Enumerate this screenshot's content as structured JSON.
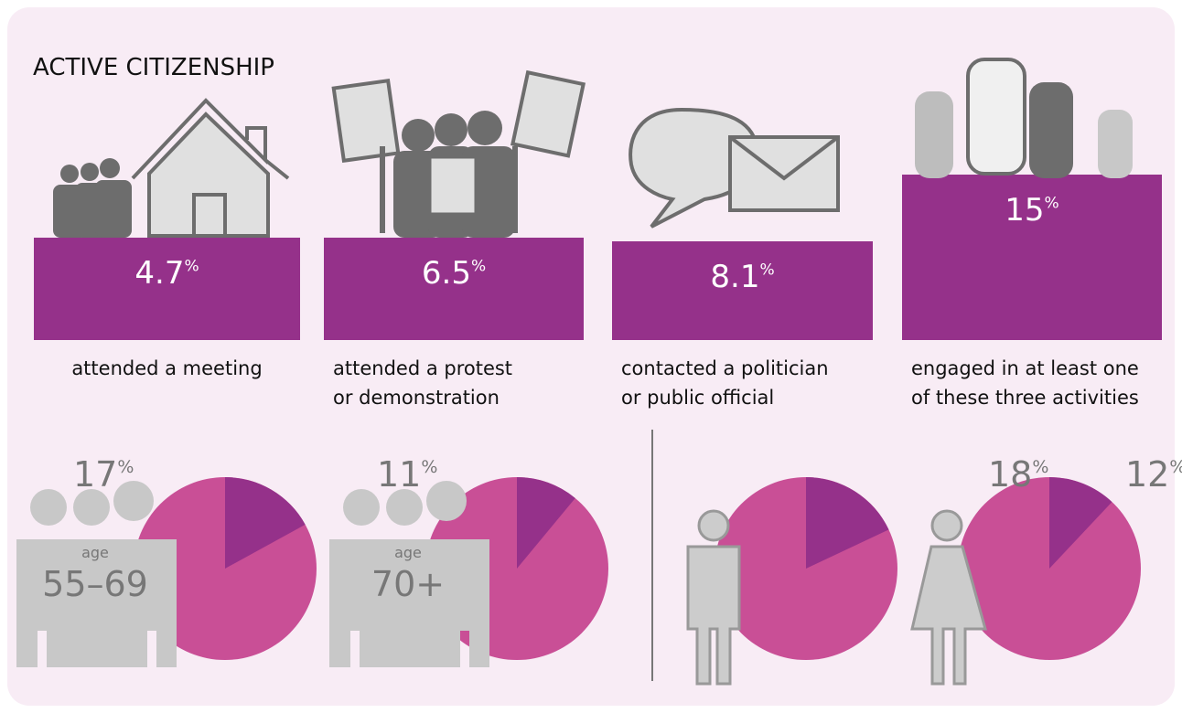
{
  "title": "ACTIVE CITIZENSHIP",
  "unit": "%",
  "activities": [
    {
      "value": 4.7,
      "label_lines": [
        "attended a meeting"
      ]
    },
    {
      "value": 6.5,
      "label_lines": [
        "attended a protest",
        "or demonstration"
      ]
    },
    {
      "value": 8.1,
      "label_lines": [
        "contacted a politician",
        "or public official"
      ]
    },
    {
      "value": 15,
      "label_lines": [
        "engaged in at least one",
        "of these three activities"
      ]
    }
  ],
  "groups": [
    {
      "value": 17,
      "caption": "age",
      "age": "55–69"
    },
    {
      "value": 11,
      "caption": "age",
      "age": "70+"
    },
    {
      "value": 18
    },
    {
      "value": 12
    }
  ]
}
